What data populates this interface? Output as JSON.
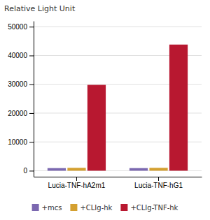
{
  "chart_data": {
    "type": "bar",
    "y_label": "Relative Light Unit",
    "categories": [
      "Lucia-TNF-hA2m1",
      "Lucia-TNF-hG1"
    ],
    "series": [
      {
        "name": "+mcs",
        "color": "#7B68B0",
        "values": [
          900,
          900
        ]
      },
      {
        "name": "+CLIg-hk",
        "color": "#D4A030",
        "values": [
          1000,
          1000
        ]
      },
      {
        "name": "+CLIg-TNF-hk",
        "color": "#B81830",
        "values": [
          29800,
          43800
        ]
      }
    ],
    "ylim": [
      -2080,
      52000
    ],
    "yticks": [
      0,
      10000,
      20000,
      30000,
      40000,
      50000
    ],
    "grid": true,
    "legend": "bottom"
  }
}
